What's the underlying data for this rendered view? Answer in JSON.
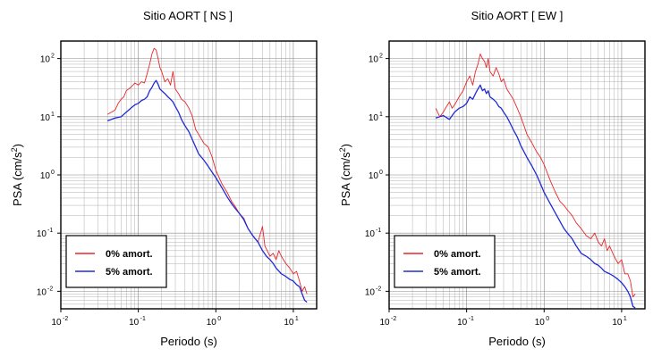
{
  "colors": {
    "damping_0": "#e8262a",
    "damping_5": "#1f2bd6"
  },
  "chart_data": [
    {
      "type": "line",
      "title": "Sitio AORT [ NS ]",
      "xlabel": "Periodo (s)",
      "ylabel": "PSA (cm/s2)",
      "xscale": "log",
      "yscale": "log",
      "xlim": [
        0.01,
        20
      ],
      "ylim": [
        0.005,
        200
      ],
      "x_ticks": [
        {
          "base": "10",
          "exp": "-2"
        },
        {
          "base": "10",
          "exp": "-1"
        },
        {
          "base": "10",
          "exp": "0"
        },
        {
          "base": "10",
          "exp": "1"
        }
      ],
      "y_ticks": [
        {
          "base": "10",
          "exp": "-2"
        },
        {
          "base": "10",
          "exp": "-1"
        },
        {
          "base": "10",
          "exp": "0"
        },
        {
          "base": "10",
          "exp": "1"
        },
        {
          "base": "10",
          "exp": "2"
        }
      ],
      "grid": true,
      "legend_position": "bottom-left",
      "series": [
        {
          "name": "0% amort.",
          "color": "#e8262a",
          "x": [
            0.04,
            0.045,
            0.05,
            0.055,
            0.06,
            0.065,
            0.07,
            0.08,
            0.09,
            0.1,
            0.11,
            0.12,
            0.13,
            0.14,
            0.15,
            0.16,
            0.17,
            0.18,
            0.19,
            0.2,
            0.22,
            0.24,
            0.26,
            0.28,
            0.3,
            0.33,
            0.36,
            0.4,
            0.45,
            0.5,
            0.55,
            0.6,
            0.7,
            0.8,
            0.9,
            1.0,
            1.2,
            1.4,
            1.6,
            1.8,
            2.0,
            2.3,
            2.6,
            3.0,
            3.5,
            4.0,
            4.3,
            4.6,
            5.0,
            5.5,
            6.0,
            6.5,
            7.0,
            8.0,
            9.0,
            10.0,
            11.0,
            12.0,
            13.0,
            14.0,
            15.0
          ],
          "y": [
            11,
            12,
            13,
            17,
            20,
            22,
            28,
            32,
            38,
            35,
            40,
            38,
            55,
            80,
            120,
            150,
            140,
            100,
            70,
            60,
            40,
            45,
            35,
            60,
            30,
            25,
            20,
            18,
            14,
            10,
            6,
            5,
            3.5,
            3,
            2,
            1.2,
            0.7,
            0.5,
            0.35,
            0.28,
            0.22,
            0.18,
            0.12,
            0.09,
            0.07,
            0.13,
            0.06,
            0.05,
            0.04,
            0.045,
            0.035,
            0.05,
            0.04,
            0.03,
            0.025,
            0.02,
            0.022,
            0.015,
            0.01,
            0.012,
            0.009
          ]
        },
        {
          "name": "5% amort.",
          "color": "#1f2bd6",
          "x": [
            0.04,
            0.045,
            0.05,
            0.06,
            0.07,
            0.08,
            0.09,
            0.1,
            0.11,
            0.12,
            0.13,
            0.14,
            0.15,
            0.16,
            0.17,
            0.18,
            0.19,
            0.2,
            0.22,
            0.24,
            0.26,
            0.28,
            0.3,
            0.33,
            0.36,
            0.4,
            0.45,
            0.5,
            0.55,
            0.6,
            0.7,
            0.8,
            0.9,
            1.0,
            1.2,
            1.4,
            1.6,
            1.8,
            2.0,
            2.3,
            2.6,
            3.0,
            3.5,
            4.0,
            4.5,
            5.0,
            5.5,
            6.0,
            7.0,
            8.0,
            9.0,
            10.0,
            11.0,
            12.0,
            13.0,
            14.0,
            15.0
          ],
          "y": [
            8.5,
            9,
            9.5,
            10,
            12,
            14,
            16,
            17,
            19,
            20,
            22,
            28,
            32,
            38,
            42,
            36,
            30,
            28,
            25,
            22,
            20,
            18,
            15,
            12,
            9,
            7,
            5.5,
            4,
            3,
            2.3,
            1.8,
            1.4,
            1.1,
            0.9,
            0.6,
            0.42,
            0.32,
            0.26,
            0.22,
            0.17,
            0.12,
            0.09,
            0.07,
            0.05,
            0.04,
            0.035,
            0.03,
            0.025,
            0.02,
            0.018,
            0.016,
            0.015,
            0.013,
            0.012,
            0.009,
            0.007,
            0.0065
          ]
        }
      ]
    },
    {
      "type": "line",
      "title": "Sitio AORT [ EW ]",
      "xlabel": "Periodo (s)",
      "ylabel": "PSA (cm/s2)",
      "xscale": "log",
      "yscale": "log",
      "xlim": [
        0.01,
        20
      ],
      "ylim": [
        0.005,
        200
      ],
      "x_ticks": [
        {
          "base": "10",
          "exp": "-2"
        },
        {
          "base": "10",
          "exp": "-1"
        },
        {
          "base": "10",
          "exp": "0"
        },
        {
          "base": "10",
          "exp": "1"
        }
      ],
      "y_ticks": [
        {
          "base": "10",
          "exp": "-2"
        },
        {
          "base": "10",
          "exp": "-1"
        },
        {
          "base": "10",
          "exp": "0"
        },
        {
          "base": "10",
          "exp": "1"
        },
        {
          "base": "10",
          "exp": "2"
        }
      ],
      "grid": true,
      "legend_position": "bottom-left",
      "series": [
        {
          "name": "0% amort.",
          "color": "#e8262a",
          "x": [
            0.04,
            0.045,
            0.05,
            0.055,
            0.06,
            0.065,
            0.07,
            0.08,
            0.09,
            0.1,
            0.11,
            0.12,
            0.13,
            0.14,
            0.15,
            0.16,
            0.17,
            0.18,
            0.19,
            0.2,
            0.22,
            0.24,
            0.26,
            0.28,
            0.3,
            0.33,
            0.36,
            0.4,
            0.45,
            0.5,
            0.55,
            0.6,
            0.7,
            0.8,
            0.9,
            1.0,
            1.2,
            1.4,
            1.6,
            1.8,
            2.0,
            2.3,
            2.6,
            3.0,
            3.5,
            4.0,
            4.5,
            5.0,
            5.5,
            6.0,
            6.5,
            7.0,
            8.0,
            9.0,
            10.0,
            11.0,
            12.0,
            13.0,
            14.0,
            15.0
          ],
          "y": [
            14,
            10,
            12,
            15,
            18,
            14,
            16,
            22,
            28,
            40,
            50,
            35,
            60,
            80,
            120,
            100,
            90,
            70,
            100,
            60,
            50,
            70,
            55,
            40,
            45,
            30,
            25,
            20,
            14,
            10,
            7,
            5,
            3.5,
            2.5,
            2,
            1.5,
            0.8,
            0.5,
            0.35,
            0.3,
            0.25,
            0.2,
            0.15,
            0.12,
            0.09,
            0.08,
            0.1,
            0.07,
            0.06,
            0.08,
            0.05,
            0.06,
            0.04,
            0.03,
            0.035,
            0.02,
            0.02,
            0.015,
            0.008,
            0.009
          ]
        },
        {
          "name": "5% amort.",
          "color": "#1f2bd6",
          "x": [
            0.04,
            0.045,
            0.05,
            0.06,
            0.07,
            0.08,
            0.09,
            0.1,
            0.11,
            0.12,
            0.13,
            0.14,
            0.15,
            0.16,
            0.17,
            0.18,
            0.19,
            0.2,
            0.22,
            0.24,
            0.26,
            0.28,
            0.3,
            0.33,
            0.36,
            0.4,
            0.45,
            0.5,
            0.55,
            0.6,
            0.7,
            0.8,
            0.9,
            1.0,
            1.2,
            1.4,
            1.6,
            1.8,
            2.0,
            2.3,
            2.6,
            3.0,
            3.5,
            4.0,
            4.5,
            5.0,
            5.5,
            6.0,
            7.0,
            8.0,
            9.0,
            10.0,
            11.0,
            12.0,
            13.0,
            14.0,
            15.0
          ],
          "y": [
            9.5,
            10,
            10.5,
            9,
            12,
            14,
            15,
            17,
            22,
            20,
            25,
            30,
            35,
            28,
            30,
            25,
            28,
            22,
            20,
            18,
            15,
            14,
            12,
            10,
            8,
            6,
            4.5,
            3.2,
            2.5,
            2,
            1.4,
            1,
            0.7,
            0.5,
            0.32,
            0.22,
            0.16,
            0.12,
            0.1,
            0.08,
            0.06,
            0.045,
            0.04,
            0.035,
            0.03,
            0.028,
            0.025,
            0.022,
            0.02,
            0.018,
            0.016,
            0.014,
            0.012,
            0.01,
            0.008,
            0.0055,
            0.0052
          ]
        }
      ]
    }
  ]
}
